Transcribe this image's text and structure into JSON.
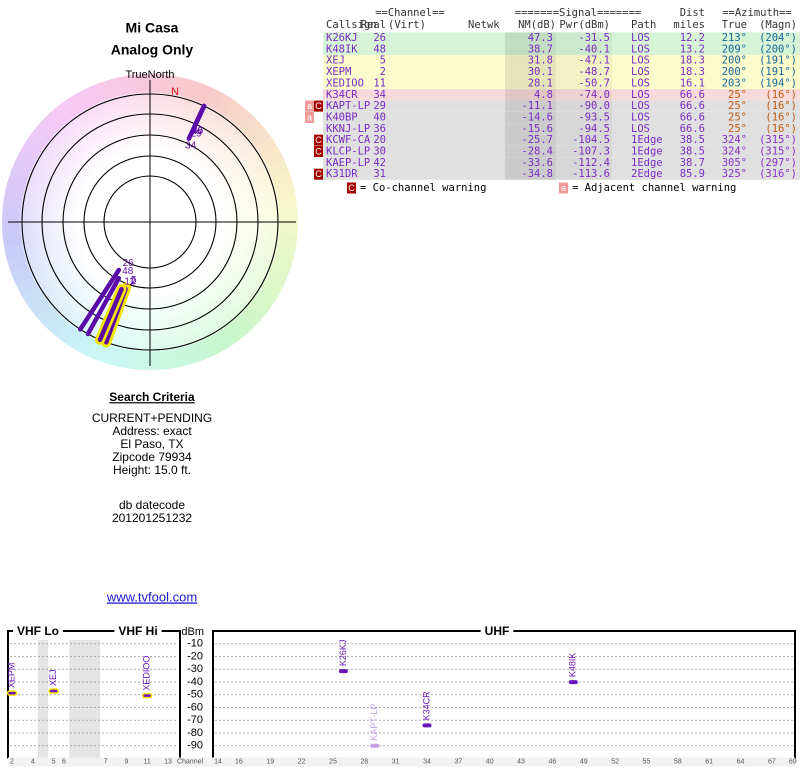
{
  "header": {
    "title": "Mi Casa",
    "subtitle": "Analog Only"
  },
  "polar": {
    "north_label": "TrueNorth",
    "magnetic_north_label": "N",
    "stations": [
      {
        "channel": 26,
        "azimuth": 213,
        "nm": 47.3,
        "color": "#5b0aa8"
      },
      {
        "channel": 48,
        "azimuth": 209,
        "nm": 38.7,
        "color": "#5b0aa8"
      },
      {
        "channel": 5,
        "azimuth": 200,
        "nm": 31.8,
        "color": "#5b0aa8",
        "outline": "#f2e400"
      },
      {
        "channel": 2,
        "azimuth": 200,
        "nm": 30.1,
        "color": "#5b0aa8",
        "outline": "#f2e400"
      },
      {
        "channel": 11,
        "azimuth": 203,
        "nm": 28.1,
        "color": "#5b0aa8",
        "outline": "#f2e400"
      },
      {
        "channel": 34,
        "azimuth": 25,
        "nm": 4.8,
        "color": "#5b0aa8"
      },
      {
        "channel": 29,
        "azimuth": 25,
        "nm": -11.1,
        "color": "#5b0aa8"
      },
      {
        "channel": 40,
        "azimuth": 25,
        "nm": -14.6,
        "color": "#5b0aa8"
      },
      {
        "channel": 36,
        "azimuth": 25,
        "nm": -15.6,
        "color": "#5b0aa8"
      }
    ]
  },
  "table": {
    "group_headers": {
      "channel": "==Channel==",
      "signal": "=======Signal=======",
      "dist": "Dist",
      "azimuth": "==Azimuth=="
    },
    "columns": {
      "callsign": "Callsign",
      "real": "Real",
      "virt": "(Virt)",
      "netwk": "Netwk",
      "nm": "NM(dB)",
      "pwr": "Pwr(dBm)",
      "path": "Path",
      "dist": "miles",
      "true": "True",
      "magn": "(Magn)"
    },
    "rows": [
      {
        "callsign": "K26KJ",
        "real": 26,
        "nm": "47.3",
        "pwr": "-31.5",
        "path": "LOS",
        "dist": "12.2",
        "true": "213°",
        "magn": "(204°)",
        "warnings": [],
        "color": "#d6f3d6",
        "azimuth_color": "#17679a"
      },
      {
        "callsign": "K48IK",
        "real": 48,
        "nm": "38.7",
        "pwr": "-40.1",
        "path": "LOS",
        "dist": "13.2",
        "true": "209°",
        "magn": "(200°)",
        "warnings": [],
        "color": "#d6f3d6",
        "azimuth_color": "#17679a"
      },
      {
        "callsign": "XEJ",
        "real": 5,
        "nm": "31.8",
        "pwr": "-47.1",
        "path": "LOS",
        "dist": "18.3",
        "true": "200°",
        "magn": "(191°)",
        "warnings": [],
        "color": "#fbfbcb",
        "azimuth_color": "#17679a"
      },
      {
        "callsign": "XEPM",
        "real": 2,
        "nm": "30.1",
        "pwr": "-48.7",
        "path": "LOS",
        "dist": "18.3",
        "true": "200°",
        "magn": "(191°)",
        "warnings": [],
        "color": "#fbfbcb",
        "azimuth_color": "#17679a"
      },
      {
        "callsign": "XEDIOO",
        "real": 11,
        "nm": "28.1",
        "pwr": "-50.7",
        "path": "LOS",
        "dist": "16.1",
        "true": "203°",
        "magn": "(194°)",
        "warnings": [],
        "color": "#fbfbcb",
        "azimuth_color": "#17679a"
      },
      {
        "callsign": "K34CR",
        "real": 34,
        "nm": "4.8",
        "pwr": "-74.0",
        "path": "LOS",
        "dist": "66.6",
        "true": "25°",
        "magn": "(16°)",
        "warnings": [],
        "color": "#f9dada",
        "azimuth_color": "#c05a12"
      },
      {
        "callsign": "KAPT-LP",
        "real": 29,
        "nm": "-11.1",
        "pwr": "-90.0",
        "path": "LOS",
        "dist": "66.6",
        "true": "25°",
        "magn": "(16°)",
        "warnings": [
          "a",
          "C"
        ],
        "color": "#e0e0e0",
        "azimuth_color": "#c05a12"
      },
      {
        "callsign": "K40BP",
        "real": 40,
        "nm": "-14.6",
        "pwr": "-93.5",
        "path": "LOS",
        "dist": "66.6",
        "true": "25°",
        "magn": "(16°)",
        "warnings": [
          "a"
        ],
        "color": "#e0e0e0",
        "azimuth_color": "#c05a12"
      },
      {
        "callsign": "KKNJ-LP",
        "real": 36,
        "nm": "-15.6",
        "pwr": "-94.5",
        "path": "LOS",
        "dist": "66.6",
        "true": "25°",
        "magn": "(16°)",
        "warnings": [],
        "color": "#e0e0e0",
        "azimuth_color": "#c05a12"
      },
      {
        "callsign": "KCWF-CA",
        "real": 20,
        "nm": "-25.7",
        "pwr": "-104.5",
        "path": "1Edge",
        "dist": "38.5",
        "true": "324°",
        "magn": "(315°)",
        "warnings": [
          "C"
        ],
        "color": "#e0e0e0",
        "azimuth_color": "#8a2fc9"
      },
      {
        "callsign": "KLCP-LP",
        "real": 30,
        "nm": "-28.4",
        "pwr": "-107.3",
        "path": "1Edge",
        "dist": "38.5",
        "true": "324°",
        "magn": "(315°)",
        "warnings": [
          "C"
        ],
        "color": "#e0e0e0",
        "azimuth_color": "#8a2fc9"
      },
      {
        "callsign": "KAEP-LP",
        "real": 42,
        "nm": "-33.6",
        "pwr": "-112.4",
        "path": "1Edge",
        "dist": "38.7",
        "true": "305°",
        "magn": "(297°)",
        "warnings": [],
        "color": "#e0e0e0",
        "azimuth_color": "#8a2fc9"
      },
      {
        "callsign": "K31DR",
        "real": 31,
        "nm": "-34.8",
        "pwr": "-113.6",
        "path": "2Edge",
        "dist": "85.9",
        "true": "325°",
        "magn": "(316°)",
        "warnings": [
          "C"
        ],
        "color": "#e0e0e0",
        "azimuth_color": "#8a2fc9"
      }
    ]
  },
  "legend": {
    "co_icon": "C",
    "co_text": "= Co-channel warning",
    "adj_icon": "a",
    "adj_text": "= Adjacent channel warning"
  },
  "search": {
    "heading": "Search Criteria",
    "lines": [
      "CURRENT+PENDING",
      "Address: exact",
      "El Paso, TX",
      "Zipcode 79934",
      "Height: 15.0 ft."
    ],
    "datecode_label": "db datecode",
    "datecode": "201201251232",
    "link": "www.tvfool.com"
  },
  "spectrum": {
    "bands": {
      "vhf_lo": "VHF Lo",
      "vhf_hi": "VHF Hi",
      "uhf": "UHF"
    },
    "y_label": "dBm",
    "x_label": "Channel",
    "ylim": [
      -100,
      0
    ],
    "yticks": [
      -10,
      -20,
      -30,
      -40,
      -50,
      -60,
      -70,
      -80,
      -90
    ],
    "grid": true,
    "vhf_ticks": [
      2,
      4,
      5,
      6,
      7,
      9,
      11,
      13
    ],
    "uhf_ticks": [
      14,
      16,
      19,
      22,
      25,
      28,
      31,
      34,
      37,
      40,
      43,
      46,
      49,
      52,
      55,
      58,
      61,
      64,
      67,
      69
    ],
    "stations": [
      {
        "callsign": "XEPM",
        "channel": 2,
        "dbm": -48.7,
        "color": "#6a16b8",
        "outline": "#f2e400"
      },
      {
        "callsign": "XEJ",
        "channel": 5,
        "dbm": -47.1,
        "color": "#6a16b8",
        "outline": "#f2e400"
      },
      {
        "callsign": "XEDIOO",
        "channel": 11,
        "dbm": -50.7,
        "color": "#6a16b8",
        "outline": "#f2e400"
      },
      {
        "callsign": "K26KJ",
        "channel": 26,
        "dbm": -31.5,
        "color": "#6a16b8"
      },
      {
        "callsign": "KAPT-LP",
        "channel": 29,
        "dbm": -90.0,
        "color": "#c4a2e6"
      },
      {
        "callsign": "K34CR",
        "channel": 34,
        "dbm": -74.0,
        "color": "#6a16b8"
      },
      {
        "callsign": "K48IK",
        "channel": 48,
        "dbm": -40.1,
        "color": "#6a16b8"
      }
    ]
  }
}
